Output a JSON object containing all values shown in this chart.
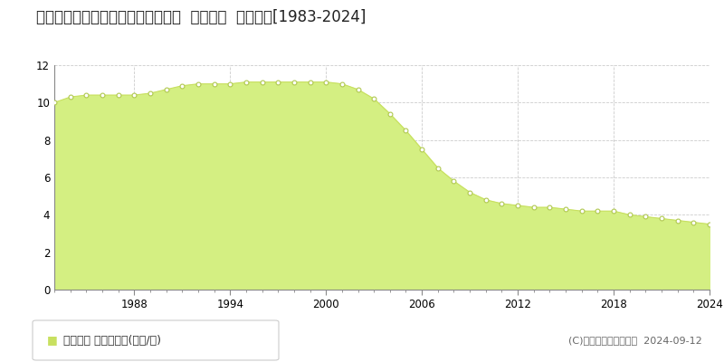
{
  "title": "北海道小樽市赤岩１丁目２７番２外  地価公示  地価推移[1983-2024]",
  "years": [
    1983,
    1984,
    1985,
    1986,
    1987,
    1988,
    1989,
    1990,
    1991,
    1992,
    1993,
    1994,
    1995,
    1996,
    1997,
    1998,
    1999,
    2000,
    2001,
    2002,
    2003,
    2004,
    2005,
    2006,
    2007,
    2008,
    2009,
    2010,
    2011,
    2012,
    2013,
    2014,
    2015,
    2016,
    2017,
    2018,
    2019,
    2020,
    2021,
    2022,
    2023,
    2024
  ],
  "values": [
    10.0,
    10.3,
    10.4,
    10.4,
    10.4,
    10.4,
    10.5,
    10.7,
    10.9,
    11.0,
    11.0,
    11.0,
    11.1,
    11.1,
    11.1,
    11.1,
    11.1,
    11.1,
    11.0,
    10.7,
    10.2,
    9.4,
    8.5,
    7.5,
    6.5,
    5.8,
    5.2,
    4.8,
    4.6,
    4.5,
    4.4,
    4.4,
    4.3,
    4.2,
    4.2,
    4.2,
    4.0,
    3.9,
    3.8,
    3.7,
    3.6,
    3.5
  ],
  "fill_color": "#d4ef82",
  "line_color": "#c8e060",
  "marker_facecolor": "#ffffff",
  "marker_edgecolor": "#b0c850",
  "bg_color": "#ffffff",
  "plot_bg_color": "#ffffff",
  "grid_color": "#cccccc",
  "ylim": [
    0,
    12
  ],
  "yticks": [
    0,
    2,
    4,
    6,
    8,
    10,
    12
  ],
  "xtick_major": [
    1988,
    1994,
    2000,
    2006,
    2012,
    2018,
    2024
  ],
  "xtick_labels": [
    "1988",
    "1994",
    "2000",
    "2006",
    "2012",
    "2018",
    "2024"
  ],
  "xlim": [
    1983,
    2024
  ],
  "legend_label": "地価公示 平均坪単価(万円/坪)",
  "legend_square_color": "#c8e060",
  "copyright_text": "(C)土地価格ドットコム  2024-09-12",
  "title_fontsize": 12,
  "tick_fontsize": 8.5,
  "legend_fontsize": 9,
  "copyright_fontsize": 8
}
